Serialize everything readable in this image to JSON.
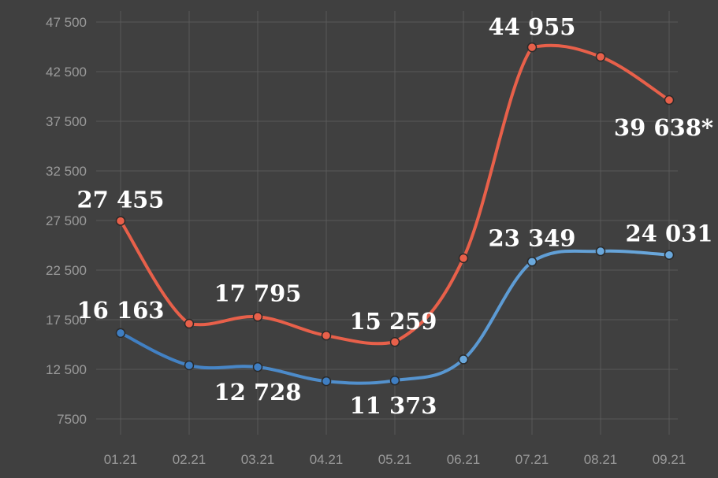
{
  "chart_data": {
    "type": "line",
    "categories": [
      "01.21",
      "02.21",
      "03.21",
      "04.21",
      "05.21",
      "06.21",
      "07.21",
      "08.21",
      "09.21"
    ],
    "ylim": [
      5000,
      47500
    ],
    "yticks": [
      47500,
      42500,
      37500,
      32500,
      27500,
      22500,
      17500,
      12500,
      7500
    ],
    "ytick_labels": [
      "47 500",
      "42 500",
      "37 500",
      "32 500",
      "27 500",
      "22 500",
      "17 500",
      "12 500",
      "7500"
    ],
    "grid": true,
    "series": [
      {
        "color": "#e8604a",
        "values": [
          27455,
          17100,
          17795,
          15900,
          15259,
          23700,
          44955,
          44000,
          39638
        ],
        "labels": [
          "27 455",
          "",
          "17 795",
          "",
          "15 259",
          "",
          "44 955",
          "",
          "39 638*"
        ]
      },
      {
        "color": "#3f7ec2",
        "color_end": "#6aa8dc",
        "values": [
          16163,
          12900,
          12728,
          11300,
          11373,
          13500,
          23349,
          24400,
          24031
        ],
        "labels": [
          "16 163",
          "",
          "12 728",
          "",
          "11 373",
          "",
          "23 349",
          "",
          "24 031"
        ]
      }
    ]
  }
}
